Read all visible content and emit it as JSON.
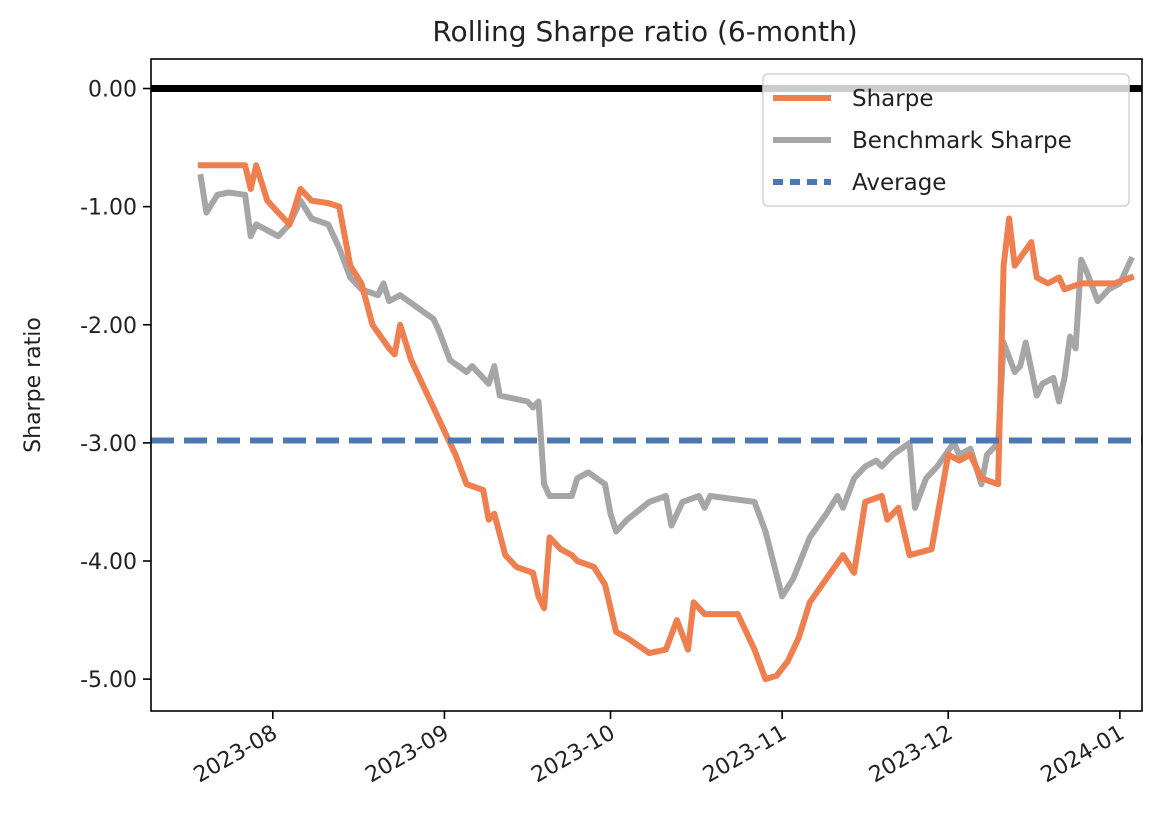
{
  "chart_data": {
    "type": "line",
    "title": "Rolling Sharpe ratio (6-month)",
    "xlabel": "",
    "ylabel": "Sharpe ratio",
    "xlim": [
      "2023-07-10",
      "2024-01-05"
    ],
    "ylim": [
      -5.27,
      0.25
    ],
    "x_ticks": [
      {
        "date": "2023-08-01",
        "label": "2023-08"
      },
      {
        "date": "2023-09-01",
        "label": "2023-09"
      },
      {
        "date": "2023-10-01",
        "label": "2023-10"
      },
      {
        "date": "2023-11-01",
        "label": "2023-11"
      },
      {
        "date": "2023-12-01",
        "label": "2023-12"
      },
      {
        "date": "2024-01-01",
        "label": "2024-01"
      }
    ],
    "y_ticks": [
      {
        "value": 0,
        "label": "0.00"
      },
      {
        "value": -1,
        "label": "-1.00"
      },
      {
        "value": -2,
        "label": "-2.00"
      },
      {
        "value": -3,
        "label": "-3.00"
      },
      {
        "value": -4,
        "label": "-4.00"
      },
      {
        "value": -5,
        "label": "-5.00"
      }
    ],
    "reference_line": {
      "value": 0,
      "color": "#000000"
    },
    "average_line": {
      "name": "Average",
      "value": -2.98,
      "color": "#4c78b0",
      "style": "dashed"
    },
    "legend": {
      "placement": "top-right"
    },
    "grid": false,
    "series": [
      {
        "name": "Sharpe",
        "color": "#ef7f4f",
        "points": [
          [
            "2023-07-19",
            -0.65
          ],
          [
            "2023-07-27",
            -0.65
          ],
          [
            "2023-07-28",
            -0.85
          ],
          [
            "2023-07-29",
            -0.65
          ],
          [
            "2023-07-31",
            -0.95
          ],
          [
            "2023-08-02",
            -1.05
          ],
          [
            "2023-08-04",
            -1.15
          ],
          [
            "2023-08-06",
            -0.85
          ],
          [
            "2023-08-08",
            -0.95
          ],
          [
            "2023-08-11",
            -0.97
          ],
          [
            "2023-08-13",
            -1.0
          ],
          [
            "2023-08-15",
            -1.5
          ],
          [
            "2023-08-17",
            -1.65
          ],
          [
            "2023-08-19",
            -2.0
          ],
          [
            "2023-08-22",
            -2.2
          ],
          [
            "2023-08-23",
            -2.25
          ],
          [
            "2023-08-24",
            -2.0
          ],
          [
            "2023-08-26",
            -2.3
          ],
          [
            "2023-08-28",
            -2.5
          ],
          [
            "2023-08-30",
            -2.7
          ],
          [
            "2023-09-01",
            -2.9
          ],
          [
            "2023-09-03",
            -3.1
          ],
          [
            "2023-09-05",
            -3.35
          ],
          [
            "2023-09-08",
            -3.4
          ],
          [
            "2023-09-09",
            -3.65
          ],
          [
            "2023-09-10",
            -3.6
          ],
          [
            "2023-09-12",
            -3.95
          ],
          [
            "2023-09-14",
            -4.05
          ],
          [
            "2023-09-17",
            -4.1
          ],
          [
            "2023-09-18",
            -4.3
          ],
          [
            "2023-09-19",
            -4.4
          ],
          [
            "2023-09-20",
            -3.8
          ],
          [
            "2023-09-22",
            -3.9
          ],
          [
            "2023-09-24",
            -3.95
          ],
          [
            "2023-09-25",
            -4.0
          ],
          [
            "2023-09-28",
            -4.05
          ],
          [
            "2023-09-30",
            -4.2
          ],
          [
            "2023-10-02",
            -4.6
          ],
          [
            "2023-10-04",
            -4.65
          ],
          [
            "2023-10-08",
            -4.78
          ],
          [
            "2023-10-11",
            -4.75
          ],
          [
            "2023-10-13",
            -4.5
          ],
          [
            "2023-10-15",
            -4.75
          ],
          [
            "2023-10-16",
            -4.35
          ],
          [
            "2023-10-18",
            -4.45
          ],
          [
            "2023-10-24",
            -4.45
          ],
          [
            "2023-10-27",
            -4.75
          ],
          [
            "2023-10-29",
            -5.0
          ],
          [
            "2023-10-31",
            -4.97
          ],
          [
            "2023-11-02",
            -4.85
          ],
          [
            "2023-11-04",
            -4.65
          ],
          [
            "2023-11-06",
            -4.35
          ],
          [
            "2023-11-09",
            -4.15
          ],
          [
            "2023-11-12",
            -3.95
          ],
          [
            "2023-11-14",
            -4.1
          ],
          [
            "2023-11-16",
            -3.5
          ],
          [
            "2023-11-19",
            -3.45
          ],
          [
            "2023-11-20",
            -3.65
          ],
          [
            "2023-11-22",
            -3.55
          ],
          [
            "2023-11-24",
            -3.95
          ],
          [
            "2023-11-28",
            -3.9
          ],
          [
            "2023-12-01",
            -3.1
          ],
          [
            "2023-12-03",
            -3.15
          ],
          [
            "2023-12-05",
            -3.1
          ],
          [
            "2023-12-07",
            -3.3
          ],
          [
            "2023-12-10",
            -3.35
          ],
          [
            "2023-12-11",
            -1.5
          ],
          [
            "2023-12-12",
            -1.1
          ],
          [
            "2023-12-13",
            -1.5
          ],
          [
            "2023-12-16",
            -1.3
          ],
          [
            "2023-12-17",
            -1.6
          ],
          [
            "2023-12-19",
            -1.65
          ],
          [
            "2023-12-21",
            -1.6
          ],
          [
            "2023-12-22",
            -1.7
          ],
          [
            "2023-12-25",
            -1.65
          ],
          [
            "2023-12-31",
            -1.65
          ],
          [
            "2024-01-03",
            -1.6
          ]
        ]
      },
      {
        "name": "Benchmark Sharpe",
        "color": "#a6a6a6",
        "points": [
          [
            "2023-07-19",
            -0.75
          ],
          [
            "2023-07-20",
            -1.05
          ],
          [
            "2023-07-22",
            -0.9
          ],
          [
            "2023-07-24",
            -0.88
          ],
          [
            "2023-07-27",
            -0.9
          ],
          [
            "2023-07-28",
            -1.25
          ],
          [
            "2023-07-29",
            -1.15
          ],
          [
            "2023-07-31",
            -1.2
          ],
          [
            "2023-08-02",
            -1.25
          ],
          [
            "2023-08-04",
            -1.15
          ],
          [
            "2023-08-06",
            -0.95
          ],
          [
            "2023-08-08",
            -1.1
          ],
          [
            "2023-08-11",
            -1.15
          ],
          [
            "2023-08-13",
            -1.35
          ],
          [
            "2023-08-15",
            -1.6
          ],
          [
            "2023-08-17",
            -1.7
          ],
          [
            "2023-08-20",
            -1.75
          ],
          [
            "2023-08-21",
            -1.65
          ],
          [
            "2023-08-22",
            -1.8
          ],
          [
            "2023-08-24",
            -1.75
          ],
          [
            "2023-08-27",
            -1.85
          ],
          [
            "2023-08-30",
            -1.95
          ],
          [
            "2023-08-31",
            -2.05
          ],
          [
            "2023-09-02",
            -2.3
          ],
          [
            "2023-09-05",
            -2.4
          ],
          [
            "2023-09-06",
            -2.35
          ],
          [
            "2023-09-08",
            -2.45
          ],
          [
            "2023-09-09",
            -2.5
          ],
          [
            "2023-09-10",
            -2.35
          ],
          [
            "2023-09-11",
            -2.6
          ],
          [
            "2023-09-16",
            -2.65
          ],
          [
            "2023-09-17",
            -2.7
          ],
          [
            "2023-09-18",
            -2.65
          ],
          [
            "2023-09-19",
            -3.35
          ],
          [
            "2023-09-20",
            -3.45
          ],
          [
            "2023-09-24",
            -3.45
          ],
          [
            "2023-09-25",
            -3.3
          ],
          [
            "2023-09-27",
            -3.25
          ],
          [
            "2023-09-30",
            -3.35
          ],
          [
            "2023-10-01",
            -3.6
          ],
          [
            "2023-10-02",
            -3.75
          ],
          [
            "2023-10-04",
            -3.65
          ],
          [
            "2023-10-08",
            -3.5
          ],
          [
            "2023-10-11",
            -3.45
          ],
          [
            "2023-10-12",
            -3.7
          ],
          [
            "2023-10-14",
            -3.5
          ],
          [
            "2023-10-17",
            -3.45
          ],
          [
            "2023-10-18",
            -3.55
          ],
          [
            "2023-10-19",
            -3.45
          ],
          [
            "2023-10-27",
            -3.5
          ],
          [
            "2023-10-29",
            -3.75
          ],
          [
            "2023-11-01",
            -4.3
          ],
          [
            "2023-11-03",
            -4.15
          ],
          [
            "2023-11-06",
            -3.8
          ],
          [
            "2023-11-09",
            -3.6
          ],
          [
            "2023-11-11",
            -3.45
          ],
          [
            "2023-11-12",
            -3.55
          ],
          [
            "2023-11-14",
            -3.3
          ],
          [
            "2023-11-16",
            -3.2
          ],
          [
            "2023-11-18",
            -3.15
          ],
          [
            "2023-11-19",
            -3.2
          ],
          [
            "2023-11-21",
            -3.1
          ],
          [
            "2023-11-24",
            -3.0
          ],
          [
            "2023-11-25",
            -3.55
          ],
          [
            "2023-11-27",
            -3.3
          ],
          [
            "2023-11-29",
            -3.2
          ],
          [
            "2023-12-02",
            -3.0
          ],
          [
            "2023-12-03",
            -3.1
          ],
          [
            "2023-12-05",
            -3.05
          ],
          [
            "2023-12-07",
            -3.35
          ],
          [
            "2023-12-08",
            -3.1
          ],
          [
            "2023-12-10",
            -3.0
          ],
          [
            "2023-12-11",
            -2.15
          ],
          [
            "2023-12-13",
            -2.4
          ],
          [
            "2023-12-14",
            -2.35
          ],
          [
            "2023-12-15",
            -2.15
          ],
          [
            "2023-12-17",
            -2.6
          ],
          [
            "2023-12-18",
            -2.5
          ],
          [
            "2023-12-20",
            -2.45
          ],
          [
            "2023-12-21",
            -2.65
          ],
          [
            "2023-12-22",
            -2.45
          ],
          [
            "2023-12-23",
            -2.1
          ],
          [
            "2023-12-24",
            -2.2
          ],
          [
            "2023-12-25",
            -1.45
          ],
          [
            "2023-12-26",
            -1.55
          ],
          [
            "2023-12-28",
            -1.8
          ],
          [
            "2023-12-30",
            -1.7
          ],
          [
            "2024-01-01",
            -1.65
          ],
          [
            "2024-01-03",
            -1.45
          ]
        ]
      }
    ]
  }
}
